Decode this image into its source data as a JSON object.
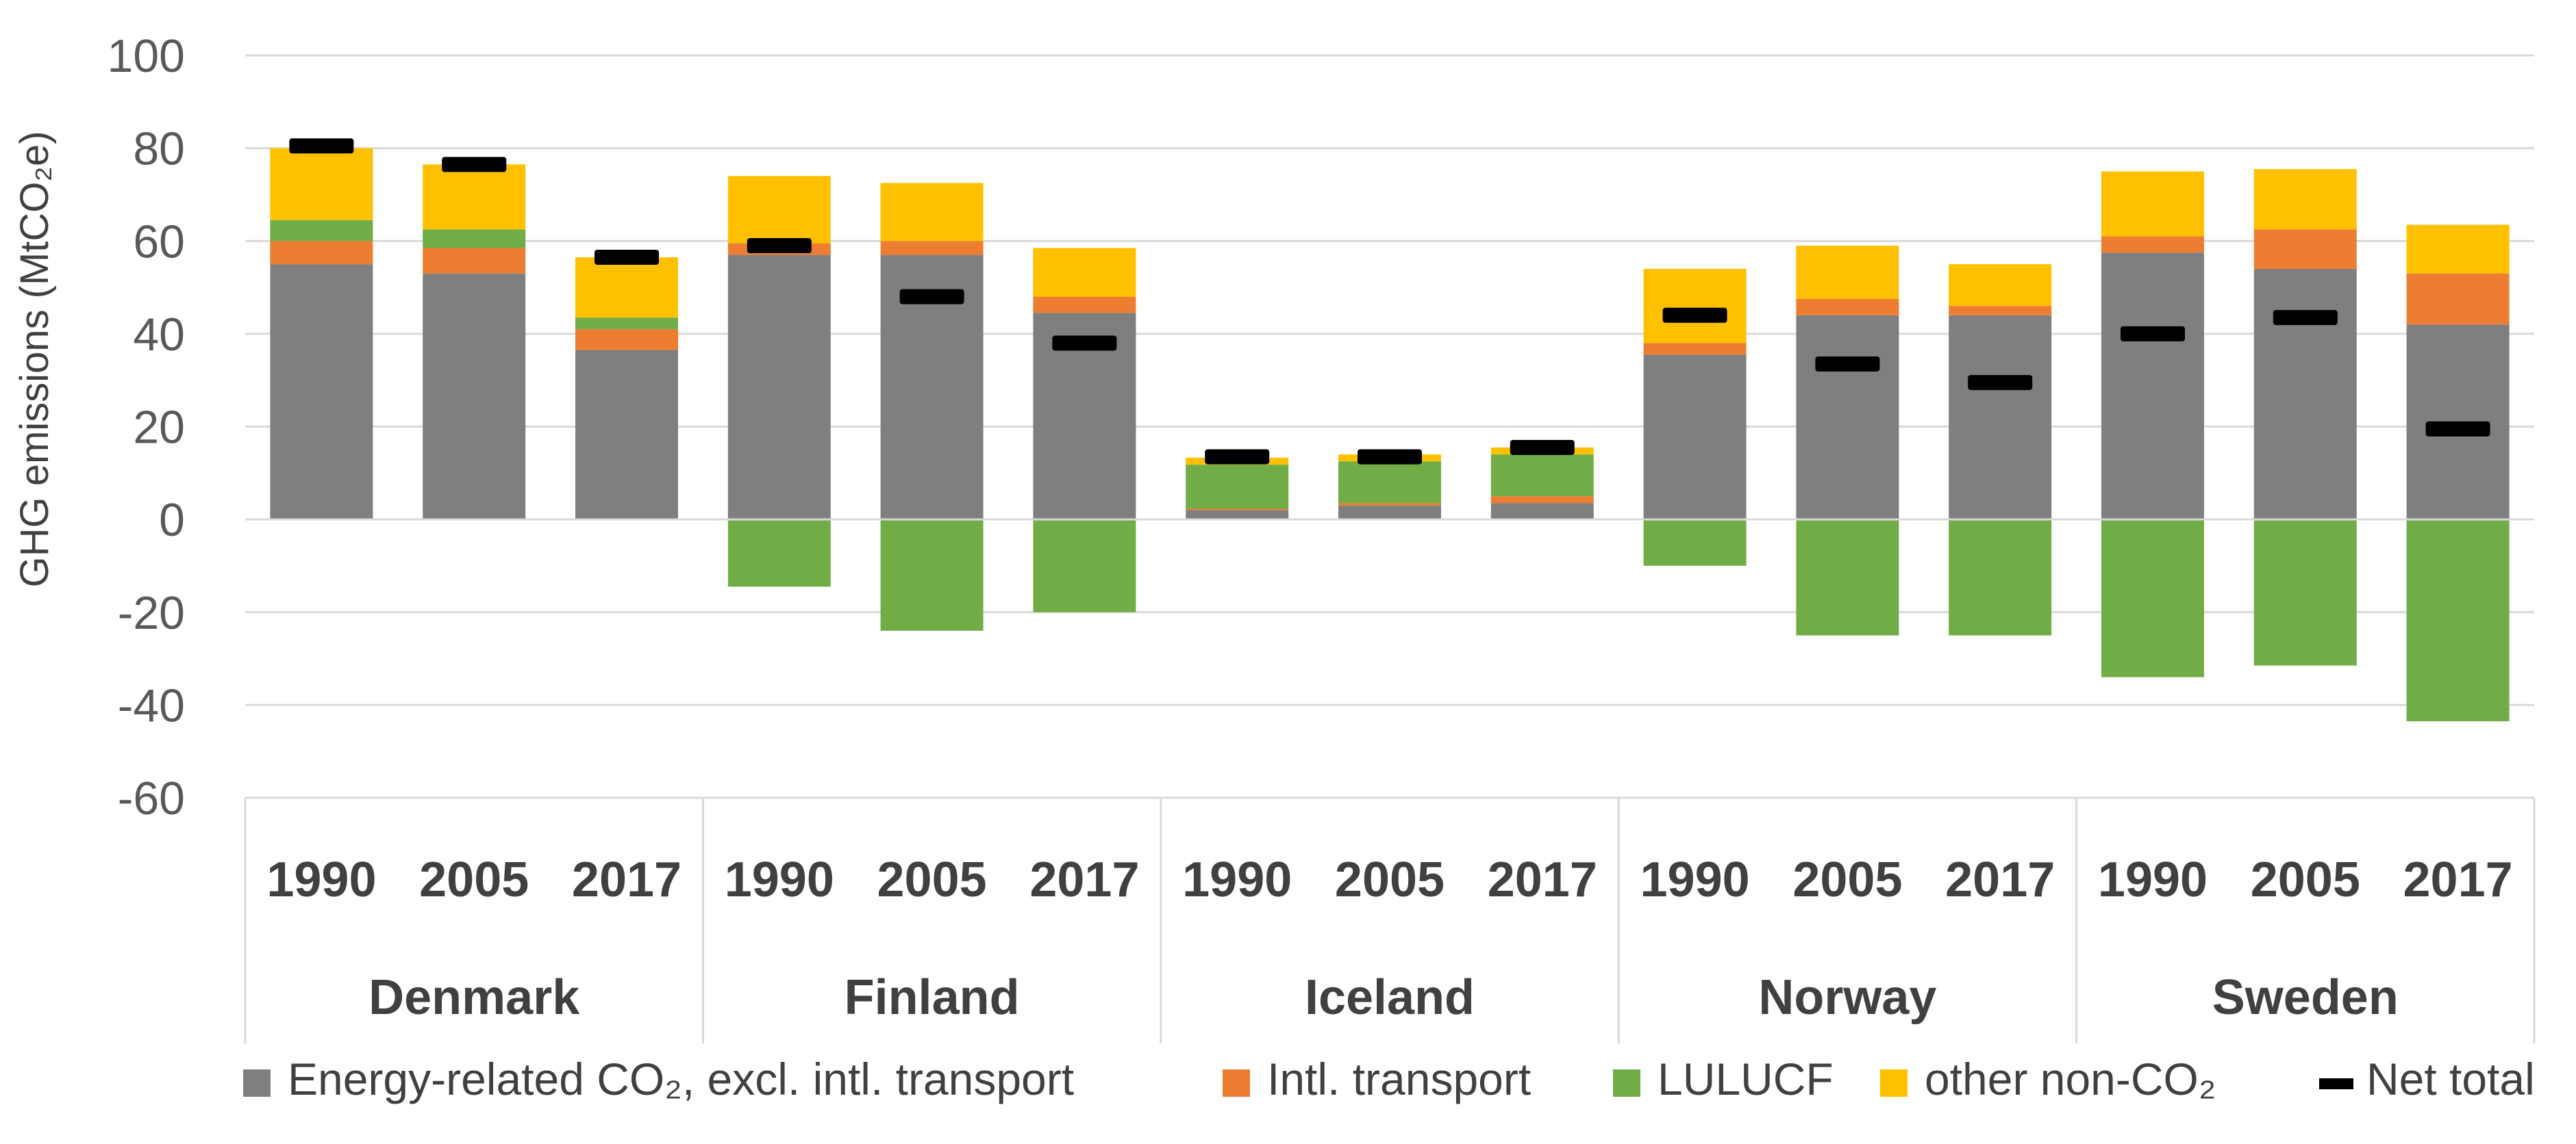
{
  "chart_data": {
    "type": "bar",
    "stacked": true,
    "ylabel": "GHG emissions (MtCO₂e)",
    "ylim": [
      -60,
      100
    ],
    "yticks": [
      100,
      80,
      60,
      40,
      20,
      0,
      -20,
      -40,
      -60
    ],
    "grid": true,
    "legend_position": "bottom",
    "groups": [
      {
        "name": "Denmark",
        "categories": [
          "1990",
          "2005",
          "2017"
        ]
      },
      {
        "name": "Finland",
        "categories": [
          "1990",
          "2005",
          "2017"
        ]
      },
      {
        "name": "Iceland",
        "categories": [
          "1990",
          "2005",
          "2017"
        ]
      },
      {
        "name": "Norway",
        "categories": [
          "1990",
          "2005",
          "2017"
        ]
      },
      {
        "name": "Sweden",
        "categories": [
          "1990",
          "2005",
          "2017"
        ]
      }
    ],
    "series": [
      {
        "name": "Energy-related CO₂, excl. intl. transport",
        "color": "#7f7f7f",
        "values": [
          55,
          53,
          36.5,
          57,
          57,
          44.5,
          2,
          3,
          3.5,
          35.5,
          44,
          44,
          57.5,
          54,
          42
        ]
      },
      {
        "name": "Intl. transport",
        "color": "#ed7d31",
        "values": [
          5,
          5.5,
          4.5,
          2.5,
          3,
          3.5,
          0.3,
          0.5,
          1.5,
          2.5,
          3.5,
          2,
          3.5,
          8.5,
          11
        ]
      },
      {
        "name": "LULUCF",
        "color": "#70ad47",
        "values": [
          4.5,
          4,
          2.5,
          -14.5,
          -24,
          -20,
          9.5,
          9,
          9,
          -10,
          -25,
          -25,
          -34,
          -31.5,
          -43.5
        ]
      },
      {
        "name": "other non-CO₂",
        "color": "#ffc000",
        "values": [
          15.5,
          14,
          13,
          14.5,
          12.5,
          10.5,
          1.5,
          1.5,
          1.5,
          16,
          11.5,
          9,
          14,
          13,
          10.5
        ]
      }
    ],
    "net_total": {
      "name": "Net total",
      "color": "#000000",
      "values": [
        80.5,
        76.5,
        56.5,
        59,
        48,
        38,
        13.5,
        13.5,
        15.5,
        44,
        33.5,
        29.5,
        40,
        43.5,
        19.5
      ]
    }
  }
}
